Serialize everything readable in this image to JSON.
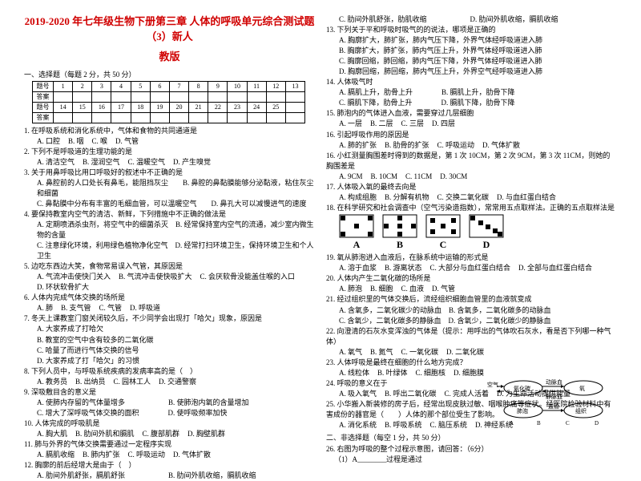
{
  "header": {
    "title": "2019-2020 年七年级生物下册第三章 人体的呼吸单元综合测试题（3）新人",
    "subtitle": "教版"
  },
  "section1": "一、选择题（每题 2 分，共 50 分）",
  "answer_table": {
    "r1_label": "题号",
    "r1": [
      "1",
      "2",
      "3",
      "4",
      "5",
      "6",
      "7",
      "8",
      "9",
      "10",
      "11",
      "12",
      "13"
    ],
    "r2_label": "答案",
    "r3_label": "题号",
    "r3": [
      "14",
      "15",
      "16",
      "17",
      "18",
      "19",
      "20",
      "21",
      "22",
      "23",
      "24",
      "25",
      ""
    ],
    "r4_label": "答案"
  },
  "left_questions": [
    {
      "q": "1. 在呼吸系统和消化系统中，气体和食物的共同通道是",
      "opts": [
        "A. 口腔",
        "B. 咽",
        "C. 喉",
        "D. 气管"
      ]
    },
    {
      "q": "2. 下列不是呼吸道的生理功能的是",
      "opts": [
        "A. 清洁空气",
        "B. 湿润空气",
        "C. 温暖空气",
        "D. 产生嗅觉"
      ]
    },
    {
      "q": "3. 关于用鼻呼吸比用口呼吸好的叙述中不正确的是",
      "opts2": [
        "A. 鼻腔前的人口处长有鼻毛，能阻挡灰尘　　B. 鼻腔的鼻黏膜能够分泌黏液，粘住灰尘和细菌",
        "C. 鼻黏膜中分布有丰富的毛细血管，可以温暖空气　　D. 鼻孔大可以减慢进气的速度"
      ]
    },
    {
      "q": "4. 要保持教室内空气的清洁、新鲜，下列措施中不正确的做法是",
      "opts2": [
        "A. 定期喷洒杀虫剂，将空气中的细菌杀灭　B. 经常保持室内空气的流通，减少室内微生物的含量",
        "C. 注意绿化环境，利用绿色植物净化空气　D. 经常打扫环境卫生，保持环境卫生和个人卫生"
      ]
    },
    {
      "q": "5. 边吃东西边大笑，食物常易误入气管，其原因是",
      "opts": [
        "A. 气流冲击使快门关入",
        "B. 气流冲击使快吸扩大",
        "C. 会厌软骨没能盖住喉的入口",
        "D. 环状软骨扩大"
      ]
    },
    {
      "q": "6. 人体内完成气体交换的场所是",
      "opts": [
        "A. 肺",
        "B. 支气管",
        "C. 气管",
        "D. 呼吸道"
      ]
    },
    {
      "q": "7. 冬天上课教室门窗关闭较久后，不少同学会出现打「哈欠」现象，原因是",
      "opts2": [
        "A. 大家养成了打哈欠",
        "B. 教室的空气中含有较多的二氧化碳",
        "C. 哈量了而进行气体交换的信号",
        "D. 大家养成了打「哈欠」的习惯"
      ]
    },
    {
      "q": "8. 下列人员中，与呼吸系统疾病的发病率高的是（　）",
      "opts": [
        "A. 教务员",
        "B. 出纳员",
        "C. 园林工人",
        "D. 交通警察"
      ]
    },
    {
      "q": "9. 深吸敷目含的意义是",
      "opts2": [
        "A. 使肺内存留的气体量增多　　　　　　B. 使肺泡内氧的含量增加",
        "C. 增大了深呼吸气体交换的面积　　　　D. 使呼吸频率加快"
      ]
    },
    {
      "q": "10. 人体完成的呼吸肌是",
      "opts": [
        "A. 胸大肌",
        "B. 肋间外肌和膈肌",
        "C. 腹部肌群",
        "D. 胸壁肌群"
      ]
    },
    {
      "q": "11. 肺与外界的气体交换需要通过一定程序实现",
      "opts": [
        "A. 膈肌收缩",
        "B. 肺内扩张",
        "C. 呼吸运动",
        "D. 气体扩散"
      ]
    },
    {
      "q": "12. 胸廓的前后经增大是由于（　）",
      "opts2": [
        "A. 肋间外肌舒张，膈肌舒张　　　　　　B. 肋间外肌收缩，膈肌收缩"
      ]
    }
  ],
  "right_questions_top": [
    {
      "opts2": [
        "C. 肋间外肌舒张，肋肌收缩　　　　　　D. 肋间外肌收缩，膈肌收缩"
      ]
    },
    {
      "q": "13. 下列关于平和呼吸时吸气的的说法，哪项是正确的",
      "opts2": [
        "A. 胸廓扩大，肺扩张，肺内气压下降，外界气体经呼吸道进入肺",
        "B. 胸廓扩大，肺扩张，肺内气压上升，外界气体经呼吸道进入肺",
        "C. 胸廓回缩，肺回缩，肺内气压下降，外界气体经呼吸道进入肺",
        "D. 胸廓回缩，肺回缩，肺内气压上升，外界空气经呼吸道进入肺"
      ]
    },
    {
      "q": "14. 人体吸气时",
      "opts2": [
        "A. 膈肌上升，肋骨上升　　　　B. 膈肌上升，肋骨下降",
        "C. 膈肌下降，肋骨上升　　　　D. 膈肌下降，肋骨下降"
      ]
    },
    {
      "q": "15. 肺泡内的气体进入血液，需要穿过几层细胞",
      "opts": [
        "A. 一层",
        "B. 二层",
        "C. 三层",
        "D. 四层"
      ]
    },
    {
      "q": "16. 引起呼吸作用的原因是",
      "opts": [
        "A. 肺的扩张",
        "B. 肋骨的扩张",
        "C. 呼吸运动",
        "D. 气体扩散"
      ]
    },
    {
      "q": "16. 小红测量胸围差时得到的数据是，第 1 次 10CM，第 2 次 9CM，第 3 次 11CM，则她的胸围差是",
      "opts": [
        "A. 9CM",
        "B. 10CM",
        "C. 11CM",
        "D. 30CM"
      ]
    },
    {
      "q": "17. 人体吸入氧的最终去向是",
      "opts": [
        "A. 构成组胞",
        "B. 分解有机物",
        "C. 交换二氧化碳",
        "D. 与血红蛋白结合"
      ]
    },
    {
      "q": "18. 在科学研究和社会调查中（空气污染造指数），常常用五点取样法。正确的五点取样法是"
    }
  ],
  "abcd_labels": {
    "a": "A",
    "b": "B",
    "c": "C",
    "d": "D"
  },
  "right_questions_bottom": [
    {
      "q": "19. 氧从肺泡进入血液后，在脉系统中运输的形式是",
      "opts": [
        "A. 溶于血浆",
        "B. 游离状态",
        "C. 大部分与血红蛋白结合",
        "D. 全部与血红蛋白结合"
      ]
    },
    {
      "q": "20. 人体内产生二氧化碳的场所是",
      "opts": [
        "A. 肺泡",
        "B. 细胞",
        "C. 血液",
        "D. 气管"
      ]
    },
    {
      "q": "21. 经过组织里的气体交换后，流经组织细胞血管里的血液就变成",
      "opts2": [
        "A. 含氧多，二氧化碳少的动脉血　B. 含氧多，二氧化碳多的动脉血",
        "C. 含氧少，二氧化碳多的静脉血　D. 含氧少，二氧化碳少的静脉血"
      ]
    },
    {
      "q": "22. 向澄清的石灰水变浑浊的气体是（提示：用呼出的气体吹石灰水，看是否下列哪一种气体）",
      "opts": [
        "A. 氧气",
        "B. 氮气",
        "C. 一氧化碳",
        "D. 二氧化碳"
      ]
    },
    {
      "q": "23. 人体呼吸是最终在细胞的什么地方完成？",
      "opts": [
        "A. 线粒体",
        "B. 叶绿体",
        "C. 细胞核",
        "D. 细胞膜"
      ]
    },
    {
      "q": "24. 呼吸的意义在于",
      "opts": [
        "A. 吸入氧气",
        "B. 呼出二氧化碳",
        "C. 完成人活着",
        "D. 为生命活动提供能量"
      ]
    },
    {
      "q": "25. 小华搬入新装修的房子后，经常出现皮肤过敏、咽喉肿痛等症状。经医院检验材料中有害成份的器官是（　　）人体的那个部位受生了影响。",
      "opts": [
        "A. 消化系统",
        "B. 呼吸系统",
        "C. 脑压系统",
        "D. 神经系统"
      ]
    }
  ],
  "section2": "二、非选择题（每空 1 分，共 50 分）",
  "q26": {
    "q": "26. 右图为呼吸的整个过程示意图，请回答：（6分）",
    "sub": "（1）A________过程是通过"
  },
  "diagram": {
    "boxes": [
      "血细胞",
      "肺泡",
      "组织液",
      "组织",
      "氧化碳",
      "二氧化碳",
      "氧"
    ],
    "labels_bottom": [
      "A",
      "B",
      "C",
      "D"
    ],
    "side_labels": [
      "外界",
      "氧",
      "气体交换",
      "血管",
      "血管"
    ]
  }
}
